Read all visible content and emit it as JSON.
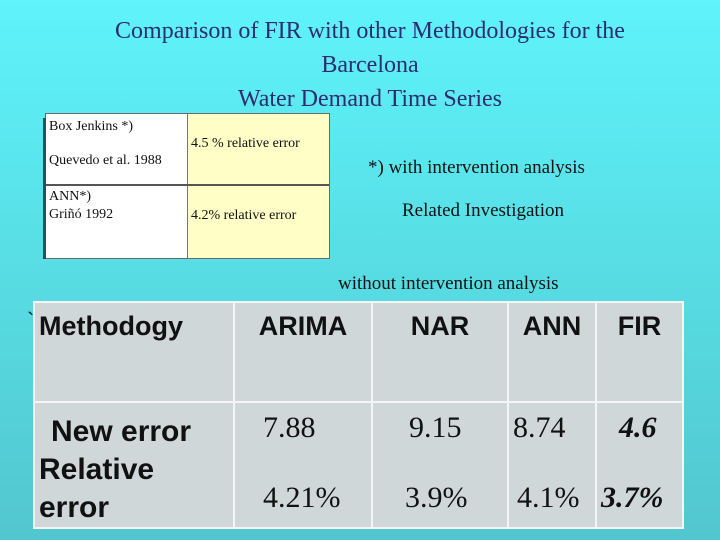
{
  "title": {
    "line1": "Comparison of FIR with other Methodologies for the",
    "line2": "Barcelona",
    "line3": "Water Demand Time Series"
  },
  "related_table": {
    "row1": {
      "left1": "Box Jenkins *)",
      "left2": "Quevedo et al. 1988",
      "right": "4.5 % relative error"
    },
    "row2": {
      "left1": "ANN*)",
      "left2": "Griñó 1992",
      "right": "4.2% relative error"
    }
  },
  "notes": {
    "intervention": "*) with intervention analysis",
    "related": "Related Investigation",
    "without": "without intervention analysis"
  },
  "comparison": {
    "stray_mark": "`",
    "headers": [
      "Methodogy",
      "ARIMA",
      "NAR",
      "ANN",
      "FIR"
    ],
    "row_label_1": "New error",
    "row_label_2": "Relative error",
    "new_error": [
      "7.88",
      "9.15",
      "8.74",
      "4.6"
    ],
    "relative_error": [
      "4.21%",
      "3.9%",
      "4.1%",
      "3.7%"
    ]
  },
  "colors": {
    "background": "#58dfe6",
    "title_text": "#2d2d6e",
    "highlight": "#fefec6",
    "table_fill": "#cfd7d8"
  }
}
